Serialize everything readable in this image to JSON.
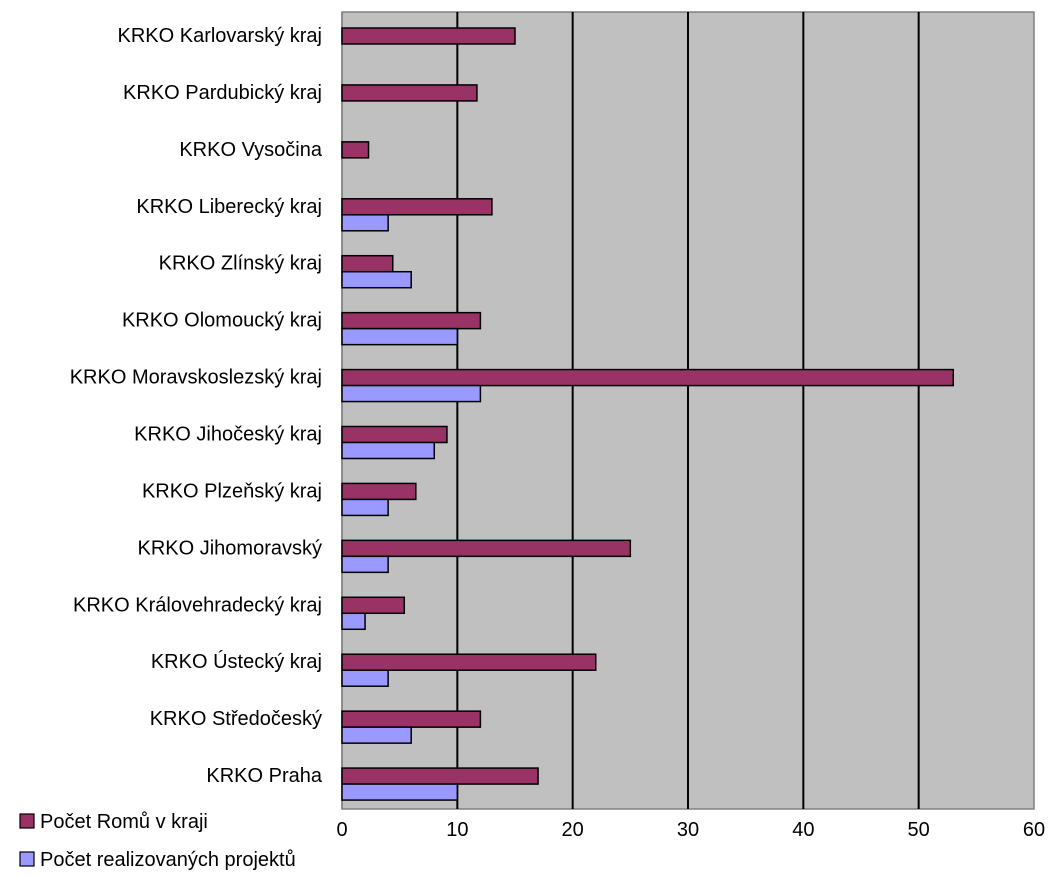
{
  "chart_data": {
    "type": "bar",
    "orientation": "horizontal",
    "title": "",
    "xlabel": "",
    "ylabel": "",
    "xlim": [
      0,
      60
    ],
    "ticks": [
      0,
      10,
      20,
      30,
      40,
      50,
      60
    ],
    "grid": true,
    "plot_background": "#c0c0c0",
    "legend_position": "bottom-left",
    "categories": [
      "KRKO Karlovarský kraj",
      "KRKO Pardubický kraj",
      "KRKO Vysočina",
      "KRKO Liberecký kraj",
      "KRKO Zlínský kraj",
      "KRKO Olomoucký kraj",
      "KRKO Moravskoslezský kraj",
      "KRKO Jihočeský kraj",
      "KRKO Plzeňský kraj",
      "KRKO Jihomoravský",
      "KRKO Královehradecký kraj",
      "KRKO Ústecký kraj",
      "KRKO Středočeský",
      "KRKO Praha"
    ],
    "series": [
      {
        "name": "Počet Romů v kraji",
        "color": "#993366",
        "values": [
          15,
          11.7,
          2.3,
          13,
          4.4,
          12,
          53,
          9.1,
          6.4,
          25,
          5.4,
          22,
          12,
          17
        ]
      },
      {
        "name": "Počet realizovaných projektů",
        "color": "#9999ff",
        "values": [
          0,
          0,
          0,
          4,
          6,
          10,
          12,
          8,
          4,
          4,
          2,
          4,
          6,
          10
        ]
      }
    ]
  }
}
